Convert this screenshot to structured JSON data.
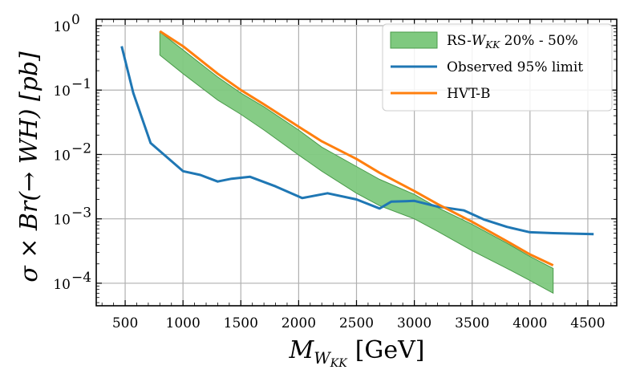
{
  "chart_data": {
    "type": "line",
    "title": "",
    "xlabel": "M_{W_KK} [GeV]",
    "xlabel_main": "M",
    "xlabel_sub": "W",
    "xlabel_subsub": "KK",
    "xlabel_unit": "[GeV]",
    "ylabel": "σ × Br(→ WH) [pb]",
    "ylabel_pre": "σ × ",
    "ylabel_mid": "Br(→ WH) [pb]",
    "xlim": [
      250,
      4750
    ],
    "ylim_log10": [
      -4.35,
      0.1
    ],
    "yscale": "log",
    "grid": true,
    "x_ticks": [
      500,
      1000,
      1500,
      2000,
      2500,
      3000,
      3500,
      4000,
      4500
    ],
    "x_tick_labels": [
      "500",
      "1000",
      "1500",
      "2000",
      "2500",
      "3000",
      "3500",
      "4000",
      "4500"
    ],
    "y_tick_exponents": [
      0,
      -1,
      -2,
      -3,
      -4
    ],
    "y_tick_base": "10",
    "y_tick_exp_labels": [
      "0",
      "−1",
      "−2",
      "−3",
      "−4"
    ],
    "legend_position": "top-right",
    "series": [
      {
        "name": "RS-W_KK 20% - 50%",
        "legend_text": "RS-",
        "legend_sym": "W",
        "legend_sub": "KK",
        "legend_rest": " 20% - 50%",
        "type": "band",
        "color": "#7fc97f",
        "edge_color": "#4a9a4a",
        "x": [
          800,
          1000,
          1300,
          1500,
          1700,
          2000,
          2200,
          2500,
          2700,
          3000,
          3200,
          3500,
          3800,
          4000,
          4200
        ],
        "upper": [
          0.8,
          0.42,
          0.16,
          0.09,
          0.055,
          0.024,
          0.013,
          0.0065,
          0.0041,
          0.0024,
          0.0015,
          0.00082,
          0.00042,
          0.00026,
          0.00017
        ],
        "lower": [
          0.35,
          0.18,
          0.07,
          0.042,
          0.024,
          0.0098,
          0.0055,
          0.0025,
          0.0016,
          0.001,
          0.00064,
          0.00032,
          0.00017,
          0.00011,
          7e-05
        ]
      },
      {
        "name": "Observed 95% limit",
        "legend_text": "Observed 95% limit",
        "type": "line",
        "color": "#1f77b4",
        "x": [
          470,
          570,
          720,
          1000,
          1150,
          1300,
          1420,
          1580,
          1800,
          2030,
          2250,
          2500,
          2700,
          2800,
          3000,
          3200,
          3430,
          3600,
          3800,
          4000,
          4200,
          4550
        ],
        "y": [
          0.48,
          0.09,
          0.015,
          0.0055,
          0.0048,
          0.0038,
          0.0042,
          0.0045,
          0.0032,
          0.0021,
          0.0025,
          0.002,
          0.00145,
          0.00185,
          0.0019,
          0.00155,
          0.00135,
          0.00098,
          0.00075,
          0.00062,
          0.0006,
          0.00058
        ]
      },
      {
        "name": "HVT-B",
        "legend_text": "HVT-B",
        "type": "line",
        "color": "#ff7f0e",
        "x": [
          800,
          1000,
          1300,
          1500,
          1700,
          2000,
          2200,
          2500,
          2700,
          3000,
          3200,
          3500,
          3800,
          4000,
          4200
        ],
        "y": [
          0.82,
          0.48,
          0.18,
          0.1,
          0.06,
          0.027,
          0.016,
          0.0085,
          0.0052,
          0.0027,
          0.0017,
          0.0009,
          0.00045,
          0.00028,
          0.00019
        ]
      }
    ]
  }
}
